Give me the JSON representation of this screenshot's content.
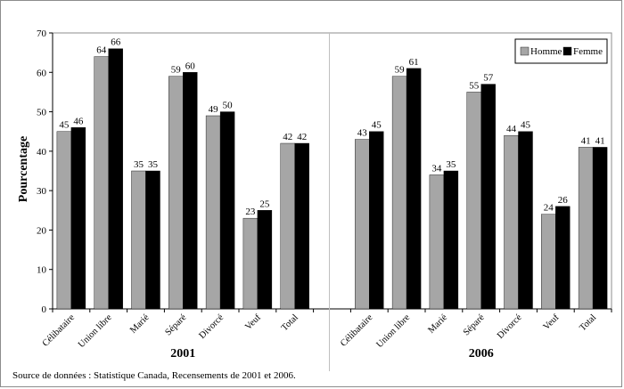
{
  "chart_data": {
    "type": "bar",
    "ylabel": "Pourcentage",
    "ylim": [
      0,
      70
    ],
    "yticks": [
      0,
      10,
      20,
      30,
      40,
      50,
      60,
      70
    ],
    "grid": false,
    "legend_position": "top-right",
    "colors": {
      "Homme": "#a6a6a6",
      "Femme": "#000000"
    },
    "groups": [
      {
        "label": "2001",
        "categories": [
          "Célibataire",
          "Union libre",
          "Marié",
          "Séparé",
          "Divorcé",
          "Veuf",
          "Total"
        ],
        "series": [
          {
            "name": "Homme",
            "values": [
              45,
              64,
              35,
              59,
              49,
              23,
              42
            ]
          },
          {
            "name": "Femme",
            "values": [
              46,
              66,
              35,
              60,
              50,
              25,
              42
            ]
          }
        ]
      },
      {
        "label": "2006",
        "categories": [
          "Célibataire",
          "Union libre",
          "Marié",
          "Séparé",
          "Divorcé",
          "Veuf",
          "Total"
        ],
        "series": [
          {
            "name": "Homme",
            "values": [
              43,
              59,
              34,
              55,
              44,
              24,
              41
            ]
          },
          {
            "name": "Femme",
            "values": [
              45,
              61,
              35,
              57,
              45,
              26,
              41
            ]
          }
        ]
      }
    ]
  },
  "source": "Source de données :  Statistique Canada, Recensements de 2001 et 2006."
}
